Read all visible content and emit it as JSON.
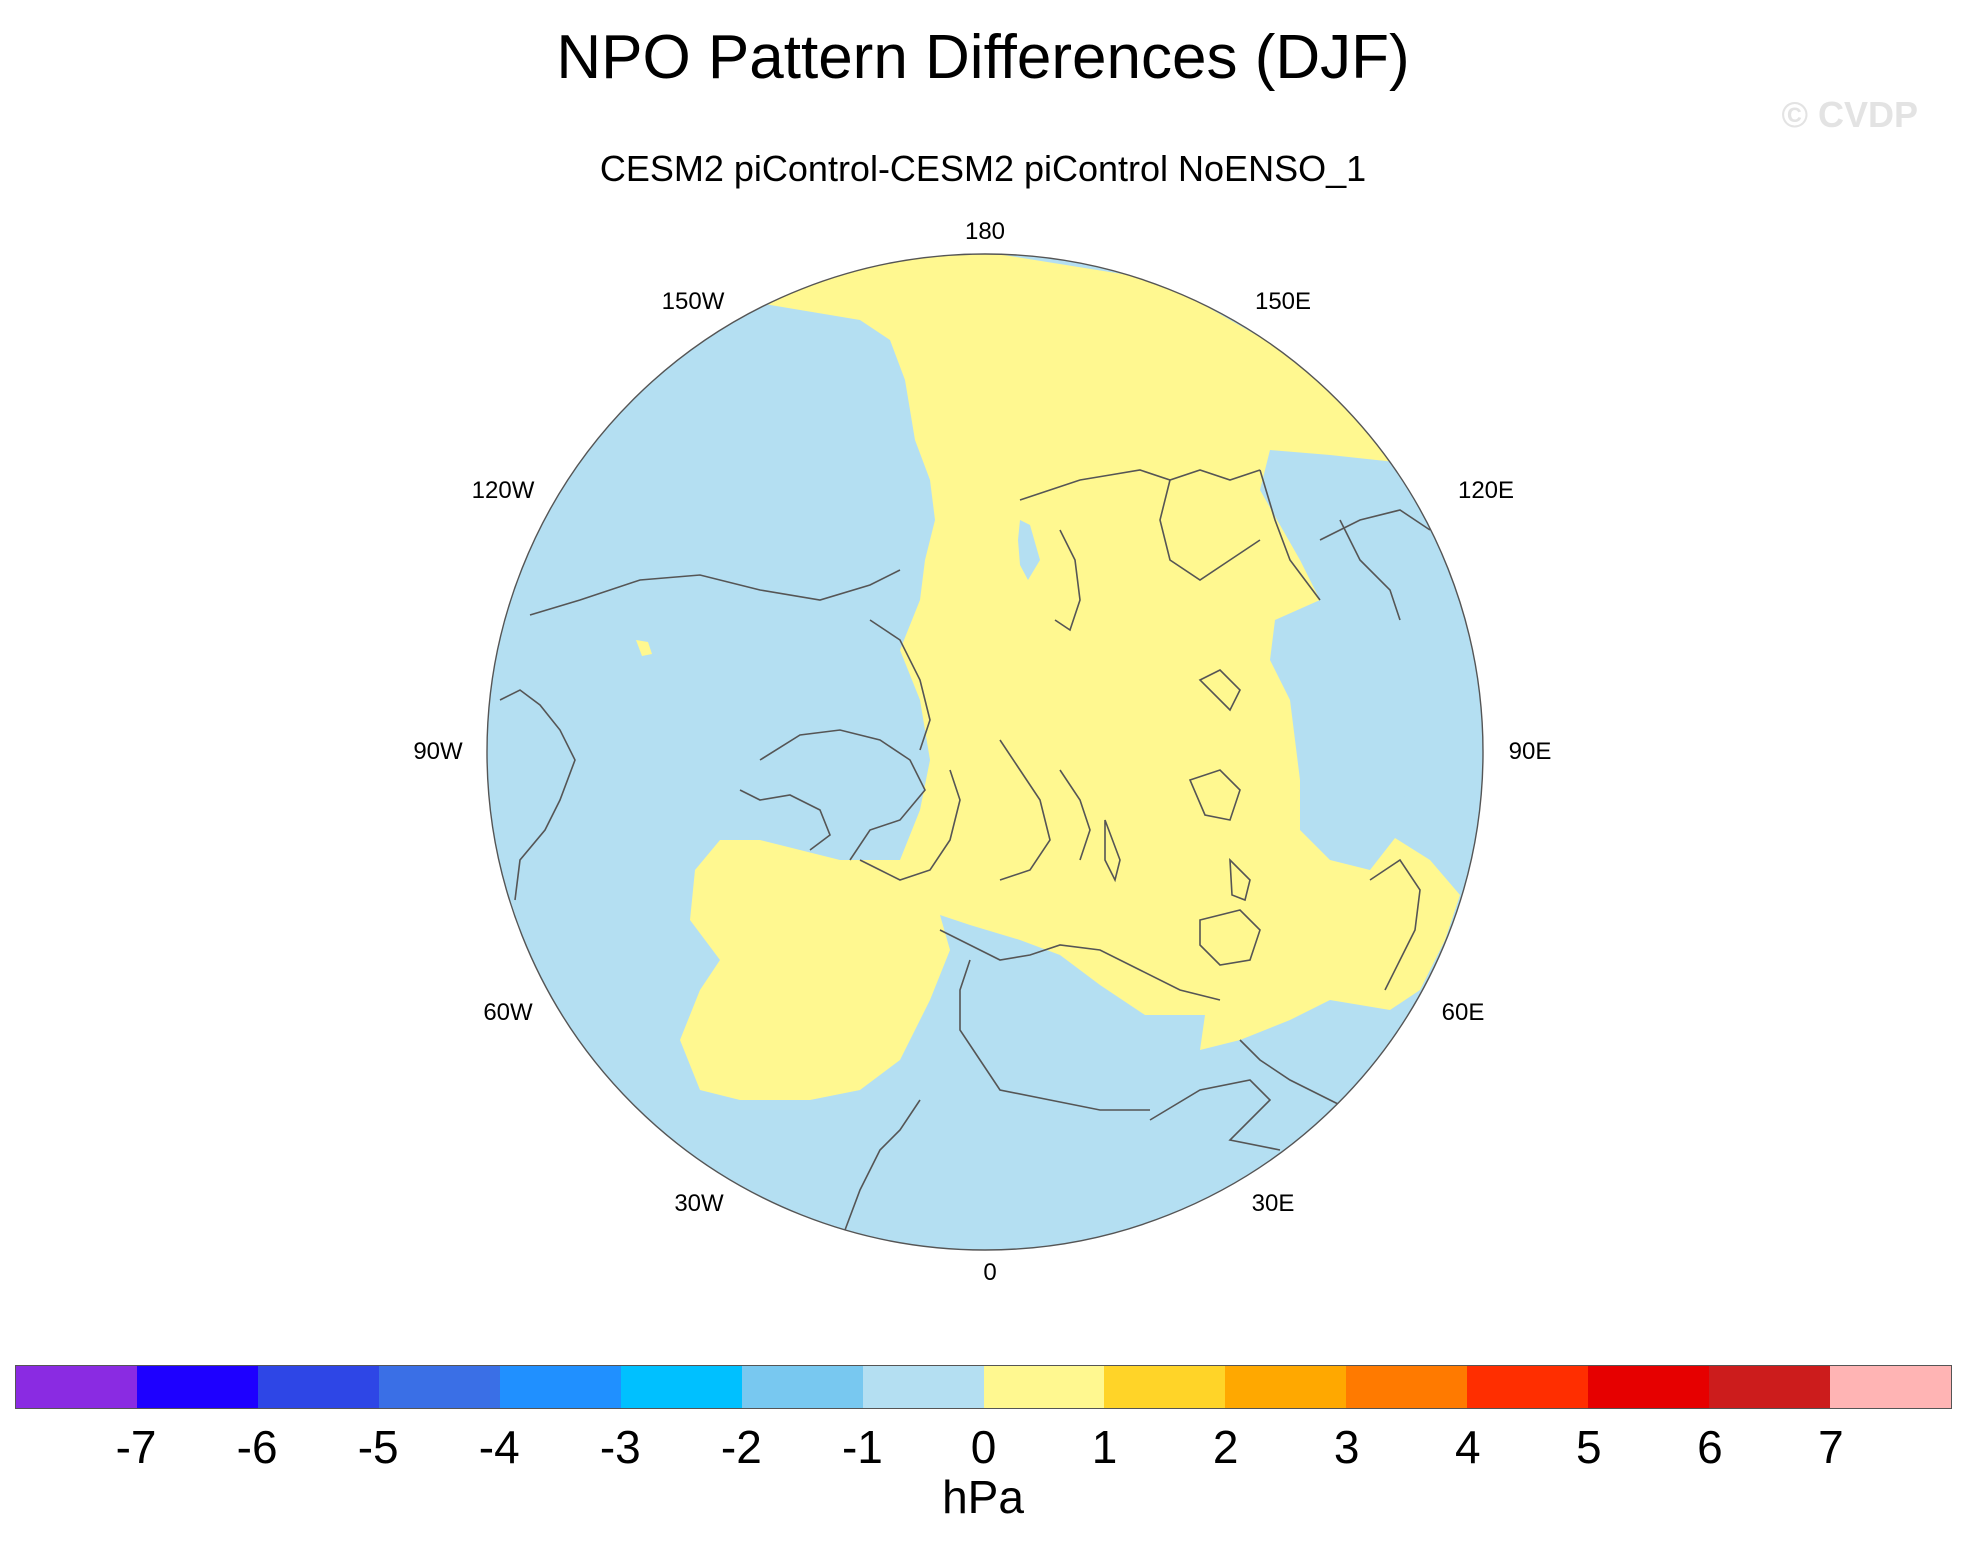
{
  "title": "NPO Pattern Differences (DJF)",
  "subtitle": "CESM2 piControl-CESM2 piControl NoENSO_1",
  "watermark": "© CVDP",
  "lon_labels": [
    "180",
    "150E",
    "120E",
    "90E",
    "60E",
    "30E",
    "0",
    "30W",
    "60W",
    "90W",
    "120W",
    "150W"
  ],
  "colorbar": {
    "colors": [
      "#8a2be2",
      "#1e00ff",
      "#2e46e6",
      "#3a6fe6",
      "#2090ff",
      "#00c0ff",
      "#78c8f0",
      "#b4dff2",
      "#fff890",
      "#ffd428",
      "#ffa800",
      "#ff7a00",
      "#ff2e00",
      "#e60000",
      "#cc1c1c",
      "#ffb4b4"
    ],
    "ticks": [
      "-7",
      "-6",
      "-5",
      "-4",
      "-3",
      "-2",
      "-1",
      "0",
      "1",
      "2",
      "3",
      "4",
      "5",
      "6",
      "7"
    ],
    "units": "hPa"
  },
  "map_colors": {
    "negative": "#b4dff2",
    "positive": "#fff890",
    "coast": "#555555",
    "border": "#555555"
  }
}
